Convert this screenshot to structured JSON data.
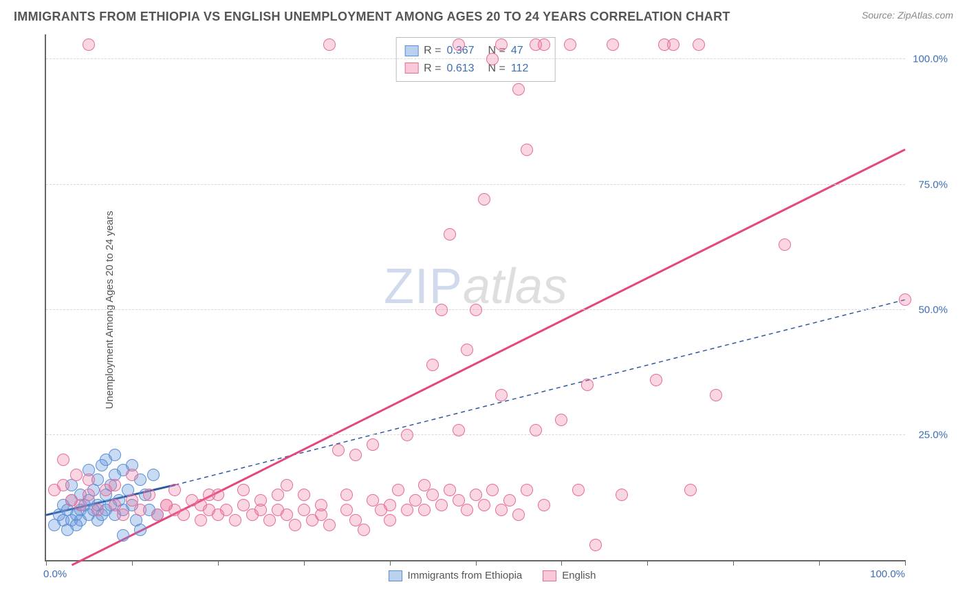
{
  "title": "IMMIGRANTS FROM ETHIOPIA VS ENGLISH UNEMPLOYMENT AMONG AGES 20 TO 24 YEARS CORRELATION CHART",
  "source": "Source: ZipAtlas.com",
  "y_axis_label": "Unemployment Among Ages 20 to 24 years",
  "watermark_zip": "ZIP",
  "watermark_atlas": "atlas",
  "chart": {
    "type": "scatter",
    "xlim": [
      0,
      100
    ],
    "ylim": [
      0,
      105
    ],
    "y_ticks": [
      25,
      50,
      75,
      100
    ],
    "y_tick_labels": [
      "25.0%",
      "50.0%",
      "75.0%",
      "100.0%"
    ],
    "x_ticks": [
      0,
      10,
      20,
      30,
      40,
      50,
      60,
      70,
      80,
      90,
      100
    ],
    "x_label_min": "0.0%",
    "x_label_max": "100.0%",
    "background_color": "#ffffff",
    "grid_color": "#d8d8d8",
    "axis_color": "#666666",
    "tick_label_color": "#3b6fb5",
    "point_radius": 9,
    "series": [
      {
        "name": "Immigrants from Ethiopia",
        "fill": "rgba(100,150,220,0.35)",
        "stroke": "#5a8fd6",
        "trend": {
          "x1": 0,
          "y1": 9,
          "x2": 15,
          "y2": 15,
          "color": "#2c5aa0",
          "width": 3,
          "dash": "none",
          "ext_x2": 100,
          "ext_y2": 52,
          "ext_dash": "6,5",
          "ext_width": 1.5
        },
        "points": [
          [
            1,
            7
          ],
          [
            1.5,
            9
          ],
          [
            2,
            8
          ],
          [
            2,
            11
          ],
          [
            2.5,
            6
          ],
          [
            2.5,
            10
          ],
          [
            3,
            8
          ],
          [
            3,
            12
          ],
          [
            3,
            15
          ],
          [
            3.5,
            9
          ],
          [
            3.5,
            7
          ],
          [
            4,
            10
          ],
          [
            4,
            13
          ],
          [
            4,
            8
          ],
          [
            4.5,
            11
          ],
          [
            5,
            9
          ],
          [
            5,
            12
          ],
          [
            5,
            18
          ],
          [
            5.5,
            10
          ],
          [
            5.5,
            14
          ],
          [
            6,
            8
          ],
          [
            6,
            11
          ],
          [
            6,
            16
          ],
          [
            6.5,
            9
          ],
          [
            6.5,
            19
          ],
          [
            7,
            10
          ],
          [
            7,
            13
          ],
          [
            7,
            20
          ],
          [
            7.5,
            11
          ],
          [
            7.5,
            15
          ],
          [
            8,
            9
          ],
          [
            8,
            17
          ],
          [
            8,
            21
          ],
          [
            8.5,
            12
          ],
          [
            9,
            10
          ],
          [
            9,
            18
          ],
          [
            9,
            5
          ],
          [
            9.5,
            14
          ],
          [
            10,
            11
          ],
          [
            10,
            19
          ],
          [
            10.5,
            8
          ],
          [
            11,
            16
          ],
          [
            11,
            6
          ],
          [
            11.5,
            13
          ],
          [
            12,
            10
          ],
          [
            12.5,
            17
          ],
          [
            13,
            9
          ]
        ]
      },
      {
        "name": "English",
        "fill": "rgba(240,120,160,0.30)",
        "stroke": "#e86a9a",
        "trend": {
          "x1": 3,
          "y1": -1,
          "x2": 100,
          "y2": 82,
          "color": "#e6457d",
          "width": 3,
          "dash": "none"
        },
        "points": [
          [
            1,
            14
          ],
          [
            2,
            15
          ],
          [
            2,
            20
          ],
          [
            3,
            12
          ],
          [
            3.5,
            17
          ],
          [
            4,
            11
          ],
          [
            5,
            13
          ],
          [
            5,
            16
          ],
          [
            6,
            10
          ],
          [
            7,
            14
          ],
          [
            8,
            11
          ],
          [
            8,
            15
          ],
          [
            9,
            9
          ],
          [
            10,
            12
          ],
          [
            10,
            17
          ],
          [
            11,
            10
          ],
          [
            12,
            13
          ],
          [
            13,
            9
          ],
          [
            14,
            11
          ],
          [
            15,
            10
          ],
          [
            15,
            14
          ],
          [
            16,
            9
          ],
          [
            17,
            12
          ],
          [
            18,
            8
          ],
          [
            18,
            11
          ],
          [
            19,
            10
          ],
          [
            20,
            9
          ],
          [
            20,
            13
          ],
          [
            21,
            10
          ],
          [
            22,
            8
          ],
          [
            23,
            11
          ],
          [
            23,
            14
          ],
          [
            24,
            9
          ],
          [
            25,
            10
          ],
          [
            25,
            12
          ],
          [
            26,
            8
          ],
          [
            27,
            10
          ],
          [
            27,
            13
          ],
          [
            28,
            9
          ],
          [
            28,
            15
          ],
          [
            29,
            7
          ],
          [
            30,
            10
          ],
          [
            30,
            13
          ],
          [
            31,
            8
          ],
          [
            32,
            11
          ],
          [
            32,
            9
          ],
          [
            33,
            7
          ],
          [
            34,
            22
          ],
          [
            35,
            10
          ],
          [
            35,
            13
          ],
          [
            36,
            8
          ],
          [
            36,
            21
          ],
          [
            37,
            6
          ],
          [
            38,
            12
          ],
          [
            38,
            23
          ],
          [
            39,
            10
          ],
          [
            40,
            11
          ],
          [
            40,
            8
          ],
          [
            41,
            14
          ],
          [
            42,
            10
          ],
          [
            42,
            25
          ],
          [
            43,
            12
          ],
          [
            44,
            10
          ],
          [
            44,
            15
          ],
          [
            45,
            13
          ],
          [
            45,
            39
          ],
          [
            46,
            11
          ],
          [
            46,
            50
          ],
          [
            47,
            14
          ],
          [
            47,
            65
          ],
          [
            48,
            12
          ],
          [
            48,
            26
          ],
          [
            49,
            10
          ],
          [
            49,
            42
          ],
          [
            50,
            13
          ],
          [
            50,
            50
          ],
          [
            51,
            11
          ],
          [
            51,
            72
          ],
          [
            52,
            14
          ],
          [
            52,
            100
          ],
          [
            53,
            10
          ],
          [
            53,
            33
          ],
          [
            54,
            12
          ],
          [
            55,
            9
          ],
          [
            55,
            94
          ],
          [
            56,
            82
          ],
          [
            56,
            14
          ],
          [
            57,
            26
          ],
          [
            57,
            103
          ],
          [
            58,
            11
          ],
          [
            58,
            103
          ],
          [
            60,
            28
          ],
          [
            61,
            103
          ],
          [
            62,
            14
          ],
          [
            63,
            35
          ],
          [
            64,
            3
          ],
          [
            66,
            103
          ],
          [
            67,
            13
          ],
          [
            71,
            36
          ],
          [
            72,
            103
          ],
          [
            73,
            103
          ],
          [
            75,
            14
          ],
          [
            76,
            103
          ],
          [
            78,
            33
          ],
          [
            86,
            63
          ],
          [
            100,
            52
          ],
          [
            5,
            103
          ],
          [
            53,
            103
          ],
          [
            14,
            11
          ],
          [
            19,
            13
          ],
          [
            33,
            103
          ],
          [
            48,
            103
          ]
        ]
      }
    ]
  },
  "stats": {
    "rows": [
      {
        "swatch_fill": "rgba(100,150,220,0.45)",
        "swatch_border": "#5a8fd6",
        "R": "0.367",
        "N": "47"
      },
      {
        "swatch_fill": "rgba(240,120,160,0.40)",
        "swatch_border": "#e86a9a",
        "R": "0.613",
        "N": "112"
      }
    ],
    "label_R": "R  =",
    "label_N": "N  ="
  },
  "legend": {
    "items": [
      {
        "label": "Immigrants from Ethiopia",
        "fill": "rgba(100,150,220,0.45)",
        "border": "#5a8fd6"
      },
      {
        "label": "English",
        "fill": "rgba(240,120,160,0.40)",
        "border": "#e86a9a"
      }
    ]
  }
}
